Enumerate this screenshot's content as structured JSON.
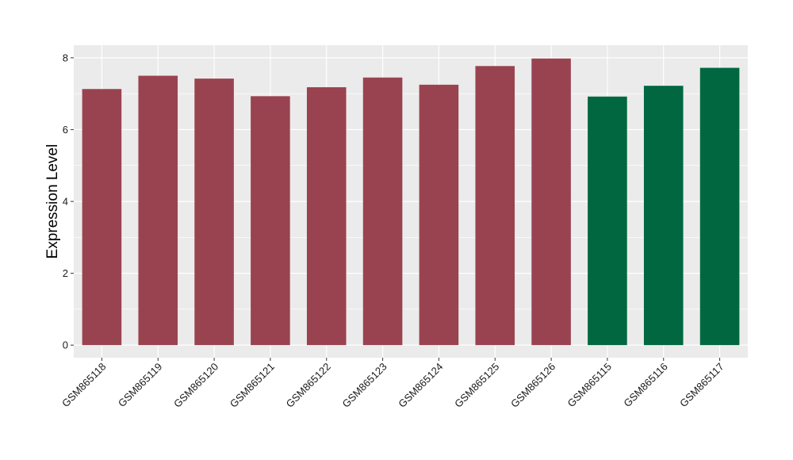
{
  "chart_data": {
    "type": "bar",
    "title": "",
    "xlabel": "",
    "ylabel": "Expression Level",
    "categories": [
      "GSM865118",
      "GSM865119",
      "GSM865120",
      "GSM865121",
      "GSM865122",
      "GSM865123",
      "GSM865124",
      "GSM865125",
      "GSM865126",
      "GSM865115",
      "GSM865116",
      "GSM865117"
    ],
    "values": [
      7.13,
      7.5,
      7.42,
      6.93,
      7.18,
      7.45,
      7.25,
      7.77,
      7.98,
      6.92,
      7.22,
      7.72
    ],
    "bar_colors": [
      "#9a4350",
      "#9a4350",
      "#9a4350",
      "#9a4350",
      "#9a4350",
      "#9a4350",
      "#9a4350",
      "#9a4350",
      "#9a4350",
      "#006741",
      "#006741",
      "#006741"
    ],
    "ylim": [
      -0.35,
      8.35
    ],
    "yticks": [
      0,
      2,
      4,
      6,
      8
    ],
    "grid": true,
    "panel_background": "#ebebeb",
    "gridline_color": "#ffffff",
    "legend": "none"
  }
}
